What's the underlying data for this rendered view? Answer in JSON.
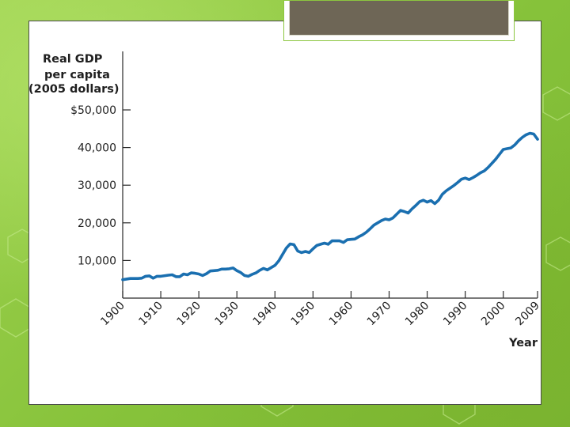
{
  "chart_data": {
    "type": "line",
    "title": "",
    "ylabel": [
      "Real GDP",
      "per capita",
      "(2005 dollars)"
    ],
    "xlabel": "Year",
    "xlim": [
      1900,
      2009
    ],
    "ylim": [
      0,
      50000
    ],
    "y_ticks": [
      {
        "value": 10000,
        "label": "10,000"
      },
      {
        "value": 20000,
        "label": "20,000"
      },
      {
        "value": 30000,
        "label": "30,000"
      },
      {
        "value": 40000,
        "label": "40,000"
      },
      {
        "value": 50000,
        "label": "$50,000"
      }
    ],
    "x_ticks": [
      {
        "value": 1900,
        "label": "1900"
      },
      {
        "value": 1910,
        "label": "1910"
      },
      {
        "value": 1920,
        "label": "1920"
      },
      {
        "value": 1930,
        "label": "1930"
      },
      {
        "value": 1940,
        "label": "1940"
      },
      {
        "value": 1950,
        "label": "1950"
      },
      {
        "value": 1960,
        "label": "1960"
      },
      {
        "value": 1970,
        "label": "1970"
      },
      {
        "value": 1980,
        "label": "1980"
      },
      {
        "value": 1990,
        "label": "1990"
      },
      {
        "value": 2000,
        "label": "2000"
      },
      {
        "value": 2009,
        "label": "2009"
      }
    ],
    "grid": false,
    "line_color": "#1a6fb0",
    "series": [
      {
        "x": [
          1900,
          1902,
          1904,
          1905,
          1906,
          1907,
          1908,
          1909,
          1910,
          1912,
          1913,
          1914,
          1915,
          1916,
          1917,
          1918,
          1919,
          1920,
          1921,
          1922,
          1923,
          1925,
          1926,
          1927,
          1928,
          1929,
          1930,
          1931,
          1932,
          1933,
          1934,
          1935,
          1936,
          1937,
          1938,
          1939,
          1940,
          1941,
          1942,
          1943,
          1944,
          1945,
          1946,
          1947,
          1948,
          1949,
          1950,
          1951,
          1952,
          1953,
          1954,
          1955,
          1956,
          1957,
          1958,
          1959,
          1960,
          1961,
          1962,
          1963,
          1964,
          1965,
          1966,
          1967,
          1968,
          1969,
          1970,
          1971,
          1972,
          1973,
          1974,
          1975,
          1976,
          1977,
          1978,
          1979,
          1980,
          1981,
          1982,
          1983,
          1984,
          1985,
          1986,
          1987,
          1988,
          1989,
          1990,
          1991,
          1992,
          1993,
          1994,
          1995,
          1996,
          1997,
          1998,
          1999,
          2000,
          2001,
          2002,
          2003,
          2004,
          2005,
          2006,
          2007,
          2008,
          2009
        ],
        "values": [
          4900,
          5200,
          5200,
          5300,
          5800,
          5900,
          5300,
          5800,
          5800,
          6100,
          6200,
          5700,
          5700,
          6400,
          6200,
          6700,
          6600,
          6400,
          6000,
          6500,
          7200,
          7400,
          7700,
          7700,
          7800,
          8000,
          7300,
          6800,
          6000,
          5800,
          6300,
          6700,
          7400,
          7900,
          7500,
          8100,
          8700,
          9900,
          11600,
          13300,
          14400,
          14200,
          12500,
          12100,
          12400,
          12100,
          13100,
          14000,
          14300,
          14600,
          14300,
          15200,
          15200,
          15200,
          14800,
          15500,
          15600,
          15700,
          16300,
          16800,
          17500,
          18400,
          19400,
          20000,
          20600,
          21000,
          20800,
          21300,
          22300,
          23300,
          23000,
          22600,
          23700,
          24600,
          25600,
          26000,
          25500,
          25900,
          25100,
          26000,
          27600,
          28500,
          29200,
          29900,
          30700,
          31600,
          31900,
          31500,
          32000,
          32600,
          33300,
          33800,
          34700,
          35800,
          36900,
          38200,
          39500,
          39700,
          39900,
          40700,
          41800,
          42700,
          43400,
          43800,
          43600,
          42200
        ]
      }
    ]
  }
}
